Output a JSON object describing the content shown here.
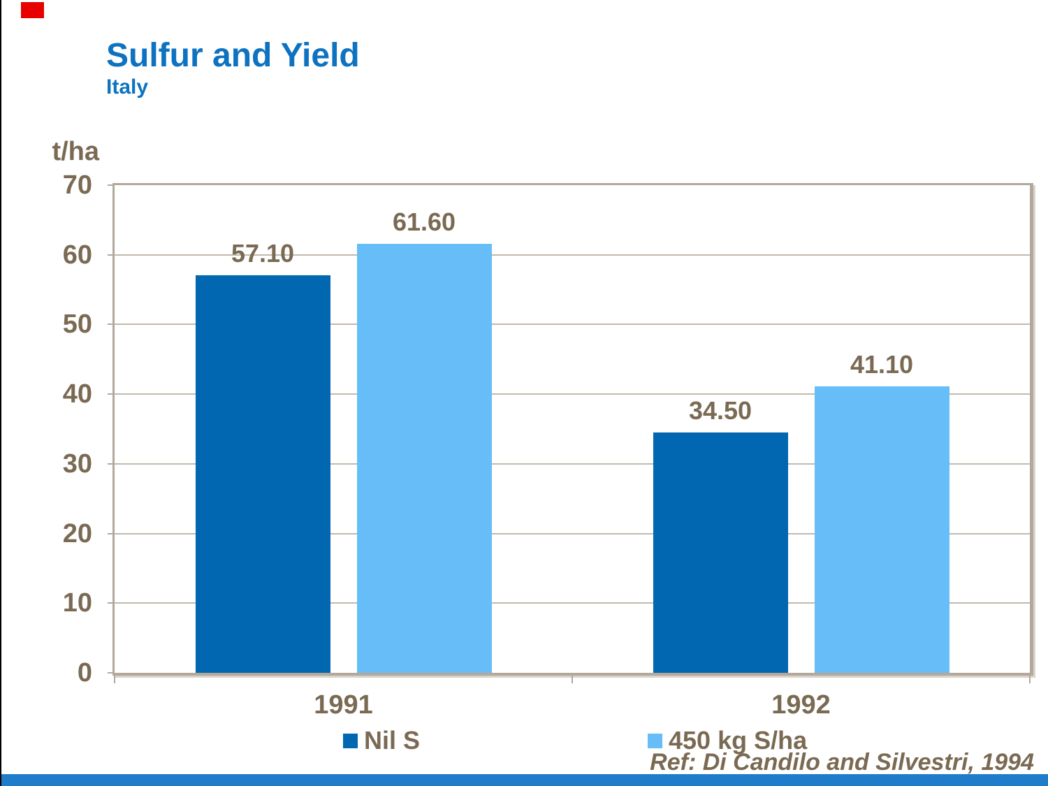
{
  "header": {
    "title": "Sulfur and Yield",
    "subtitle": "Italy"
  },
  "footer": {
    "reference": "Ref: Di Candilo and Silvestri, 1994"
  },
  "chart_data": {
    "type": "bar",
    "title": "Sulfur and Yield",
    "subtitle": "Italy",
    "ylabel": "t/ha",
    "categories": [
      "1991",
      "1992"
    ],
    "series": [
      {
        "name": "Nil S",
        "color": "#0067B0",
        "values": [
          57.1,
          34.5
        ],
        "labels": [
          "57.10",
          "34.50"
        ]
      },
      {
        "name": "450 kg S/ha",
        "color": "#66BDF7",
        "values": [
          61.6,
          41.1
        ],
        "labels": [
          "61.60",
          "41.10"
        ]
      }
    ],
    "ylim": [
      0,
      70
    ],
    "yticks": [
      0,
      10,
      20,
      30,
      40,
      50,
      60,
      70
    ],
    "grid": true,
    "legend_position": "bottom"
  },
  "colors": {
    "title_blue": "#0D72C0",
    "label_brown": "#7A6A53",
    "series_dark_blue": "#0067B0",
    "series_light_blue": "#66BDF7",
    "gridline": "#C2B9AB",
    "plot_border": "#B3A89C",
    "axis_shadow": "#D9D3C9",
    "red_accent": "#E60000",
    "bottom_band": "#1F7CCB"
  }
}
